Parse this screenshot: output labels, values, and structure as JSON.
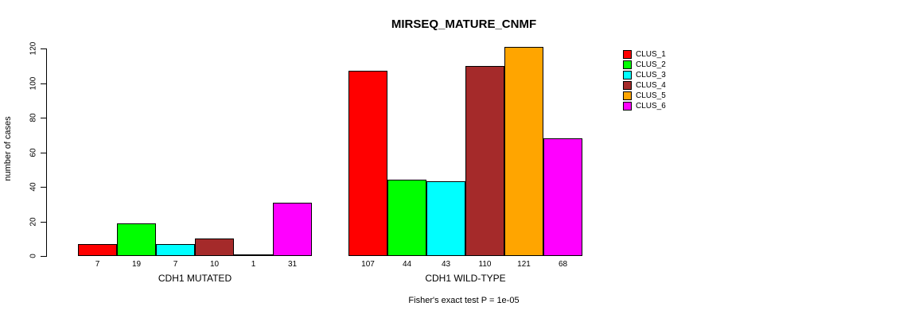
{
  "title": "MIRSEQ_MATURE_CNMF",
  "footer": "Fisher's exact test P = 1e-05",
  "chart_data": {
    "type": "bar",
    "title": "MIRSEQ_MATURE_CNMF",
    "xlabel": "",
    "ylabel": "number of cases",
    "ylim": [
      0,
      120
    ],
    "yticks": [
      0,
      20,
      40,
      60,
      80,
      100,
      120
    ],
    "grid": false,
    "legend_position": "right-outside",
    "categories": [
      "CDH1 MUTATED",
      "CDH1 WILD-TYPE"
    ],
    "series": [
      {
        "name": "CLUS_1",
        "color": "#ff0000",
        "values": [
          7,
          107
        ]
      },
      {
        "name": "CLUS_2",
        "color": "#00ff00",
        "values": [
          19,
          44
        ]
      },
      {
        "name": "CLUS_3",
        "color": "#00ffff",
        "values": [
          7,
          43
        ]
      },
      {
        "name": "CLUS_4",
        "color": "#a52a2a",
        "values": [
          10,
          110
        ]
      },
      {
        "name": "CLUS_5",
        "color": "#ffa500",
        "values": [
          1,
          121
        ]
      },
      {
        "name": "CLUS_6",
        "color": "#ff00ff",
        "values": [
          31,
          68
        ]
      }
    ],
    "bar_value_labels_shown": true,
    "annotation": "Fisher's exact test P = 1e-05"
  }
}
